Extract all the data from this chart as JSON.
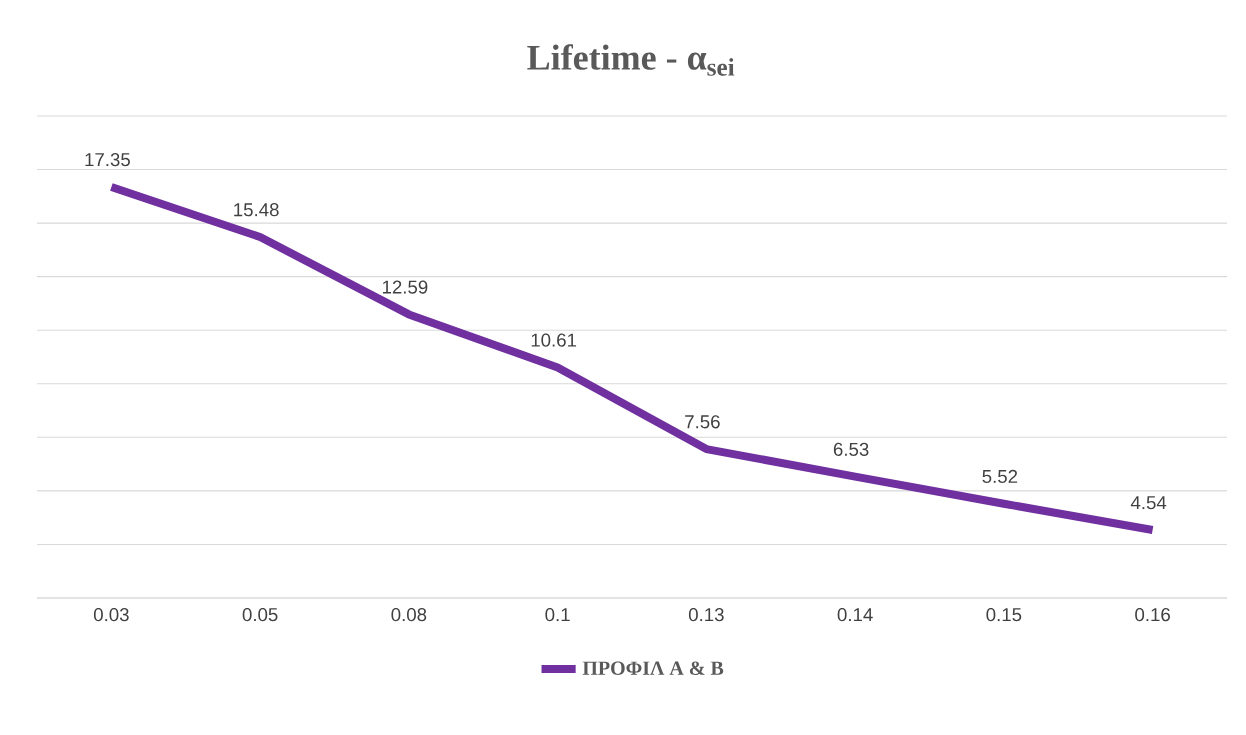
{
  "chart_data": {
    "type": "line",
    "title": "Lifetime - α$_{sei}$",
    "categories": [
      "0.03",
      "0.05",
      "0.08",
      "0.1",
      "0.13",
      "0.14",
      "0.15",
      "0.16"
    ],
    "series": [
      {
        "name": "ΠΡΟΦΙΛ Α & Β",
        "color": "#7030a0",
        "values": [
          17.35,
          15.48,
          12.59,
          10.61,
          7.56,
          6.53,
          5.52,
          4.54
        ]
      }
    ],
    "ylim": [
      2,
      20
    ],
    "yticks": [
      {
        "value": 2,
        "label": null
      },
      {
        "value": 4,
        "label": null
      },
      {
        "value": 6,
        "label": null
      },
      {
        "value": 8,
        "label": null
      },
      {
        "value": 10,
        "label": null
      },
      {
        "value": 12,
        "label": null
      },
      {
        "value": 14,
        "label": null
      },
      {
        "value": 16,
        "label": null
      },
      {
        "value": 18,
        "label": null
      },
      {
        "value": 20,
        "label": null
      }
    ],
    "tick_labels": "x",
    "grid": "y",
    "legend": "bottom",
    "data_labels": true,
    "marker": "none",
    "line_style": "solid"
  }
}
